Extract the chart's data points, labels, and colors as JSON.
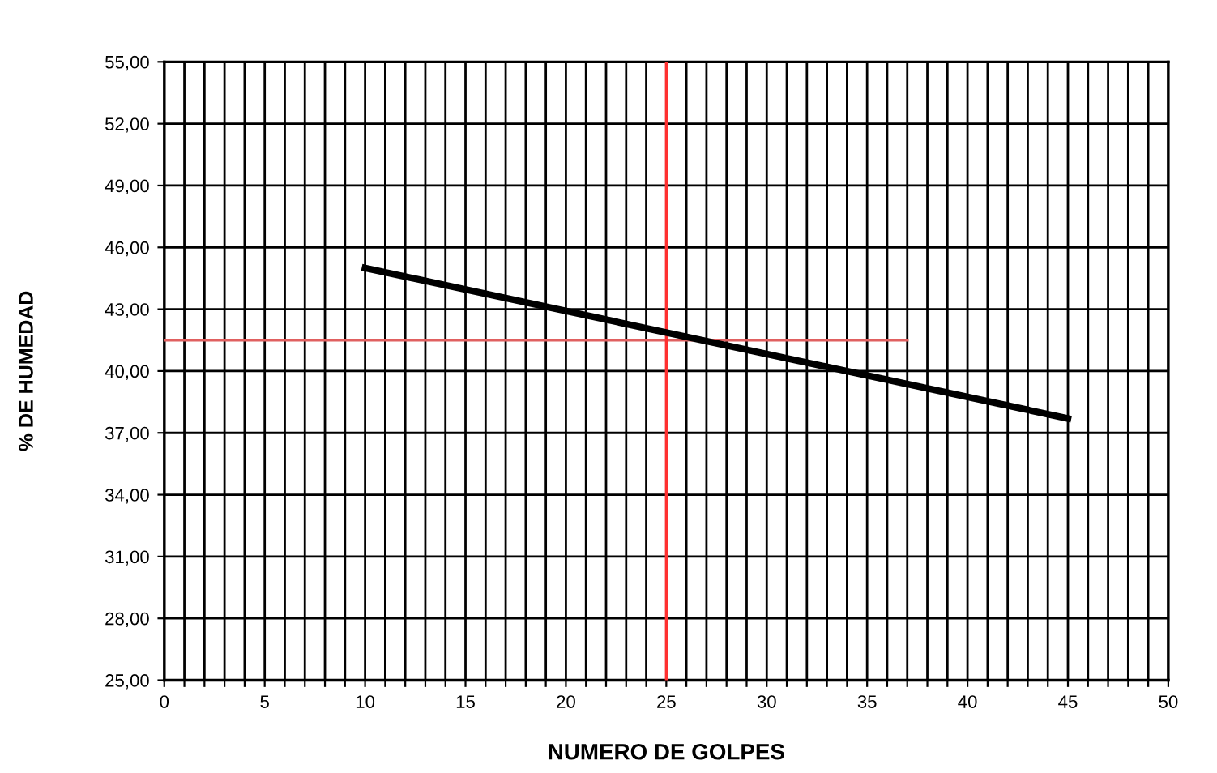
{
  "chart_data": {
    "type": "line",
    "xlabel": "NUMERO DE GOLPES",
    "ylabel": "% DE HUMEDAD",
    "xlim": [
      0,
      50
    ],
    "ylim": [
      25,
      55
    ],
    "xticks": [
      0,
      {
        "value": 1,
        "label": null
      },
      {
        "value": 2,
        "label": null
      },
      {
        "value": 3,
        "label": null
      },
      {
        "value": 4,
        "label": null
      },
      5,
      {
        "value": 6,
        "label": null
      },
      {
        "value": 7,
        "label": null
      },
      {
        "value": 8,
        "label": null
      },
      {
        "value": 9,
        "label": null
      },
      10,
      {
        "value": 11,
        "label": null
      },
      {
        "value": 12,
        "label": null
      },
      {
        "value": 13,
        "label": null
      },
      {
        "value": 14,
        "label": null
      },
      15,
      {
        "value": 16,
        "label": null
      },
      {
        "value": 17,
        "label": null
      },
      {
        "value": 18,
        "label": null
      },
      {
        "value": 19,
        "label": null
      },
      20,
      {
        "value": 21,
        "label": null
      },
      {
        "value": 22,
        "label": null
      },
      {
        "value": 23,
        "label": null
      },
      {
        "value": 24,
        "label": null
      },
      25,
      {
        "value": 26,
        "label": null
      },
      {
        "value": 27,
        "label": null
      },
      {
        "value": 28,
        "label": null
      },
      {
        "value": 29,
        "label": null
      },
      30,
      {
        "value": 31,
        "label": null
      },
      {
        "value": 32,
        "label": null
      },
      {
        "value": 33,
        "label": null
      },
      {
        "value": 34,
        "label": null
      },
      35,
      {
        "value": 36,
        "label": null
      },
      {
        "value": 37,
        "label": null
      },
      {
        "value": 38,
        "label": null
      },
      {
        "value": 39,
        "label": null
      },
      40,
      {
        "value": 41,
        "label": null
      },
      {
        "value": 42,
        "label": null
      },
      {
        "value": 43,
        "label": null
      },
      {
        "value": 44,
        "label": null
      },
      45,
      {
        "value": 46,
        "label": null
      },
      {
        "value": 47,
        "label": null
      },
      {
        "value": 48,
        "label": null
      },
      {
        "value": 49,
        "label": null
      },
      50
    ],
    "yticks": [
      {
        "value": 25,
        "label": "25,00"
      },
      {
        "value": 28,
        "label": "28,00"
      },
      {
        "value": 31,
        "label": "31,00"
      },
      {
        "value": 34,
        "label": "34,00"
      },
      {
        "value": 37,
        "label": "37,00"
      },
      {
        "value": 40,
        "label": "40,00"
      },
      {
        "value": 43,
        "label": "43,00"
      },
      {
        "value": 46,
        "label": "46,00"
      },
      {
        "value": 49,
        "label": "49,00"
      },
      {
        "value": 52,
        "label": "52,00"
      },
      {
        "value": 55,
        "label": "55,00"
      }
    ],
    "grid": true,
    "marker": "none",
    "line_style": "solid",
    "series": [
      {
        "color": "#000000",
        "x": [
          10,
          45
        ],
        "values": [
          45.0,
          37.7
        ]
      },
      {
        "color": "#e06060",
        "x": [
          0,
          37
        ],
        "values": [
          41.5,
          41.5
        ]
      }
    ],
    "ref_lines": [
      {
        "axis": "x",
        "value": 25,
        "label": null,
        "color": "#ff3030"
      }
    ]
  }
}
